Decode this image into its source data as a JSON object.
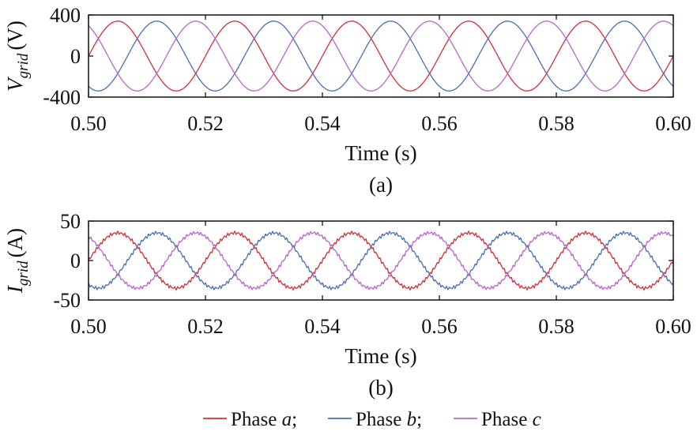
{
  "figure": {
    "panel_a_label": "(a)",
    "panel_b_label": "(b)",
    "legend": {
      "prefix": "Phase",
      "items": [
        {
          "letter": "a",
          "sep": ";",
          "color": "#d32f3a"
        },
        {
          "letter": "b",
          "sep": ";",
          "color": "#4a6fb4"
        },
        {
          "letter": "c",
          "sep": "",
          "color": "#b768c9"
        }
      ]
    }
  },
  "chart_data": [
    {
      "type": "line",
      "panel": "a",
      "ylabel_symbol": "V",
      "ylabel_subscript": "grid",
      "ylabel_unit": "(V)",
      "xlabel": "Time (s)",
      "xlim": [
        0.5,
        0.6
      ],
      "ylim": [
        -400,
        400
      ],
      "x_ticks": [
        "0.50",
        "0.52",
        "0.54",
        "0.56",
        "0.58",
        "0.60"
      ],
      "y_ticks": [
        "400",
        "0",
        "-400"
      ],
      "waveform": {
        "kind": "sine",
        "frequency_hz": 50,
        "amplitude": 340,
        "phase_order": [
          "a",
          "b",
          "c"
        ],
        "phase_shift_deg": [
          0,
          -120,
          120
        ]
      },
      "series": [
        {
          "name": "Phase a",
          "color": "#d32f3a"
        },
        {
          "name": "Phase b",
          "color": "#4a6fb4"
        },
        {
          "name": "Phase c",
          "color": "#b768c9"
        }
      ]
    },
    {
      "type": "line",
      "panel": "b",
      "ylabel_symbol": "I",
      "ylabel_subscript": "grid",
      "ylabel_unit": "(A)",
      "xlabel": "Time (s)",
      "xlim": [
        0.5,
        0.6
      ],
      "ylim": [
        -50,
        50
      ],
      "x_ticks": [
        "0.50",
        "0.52",
        "0.54",
        "0.56",
        "0.58",
        "0.60"
      ],
      "y_ticks": [
        "50",
        "0",
        "-50"
      ],
      "waveform": {
        "kind": "sine",
        "frequency_hz": 50,
        "amplitude": 35,
        "phase_order": [
          "a",
          "b",
          "c"
        ],
        "phase_shift_deg": [
          0,
          -120,
          120
        ],
        "ripple": true
      },
      "series": [
        {
          "name": "Phase a",
          "color": "#d32f3a"
        },
        {
          "name": "Phase b",
          "color": "#4a6fb4"
        },
        {
          "name": "Phase c",
          "color": "#b768c9"
        }
      ]
    }
  ]
}
